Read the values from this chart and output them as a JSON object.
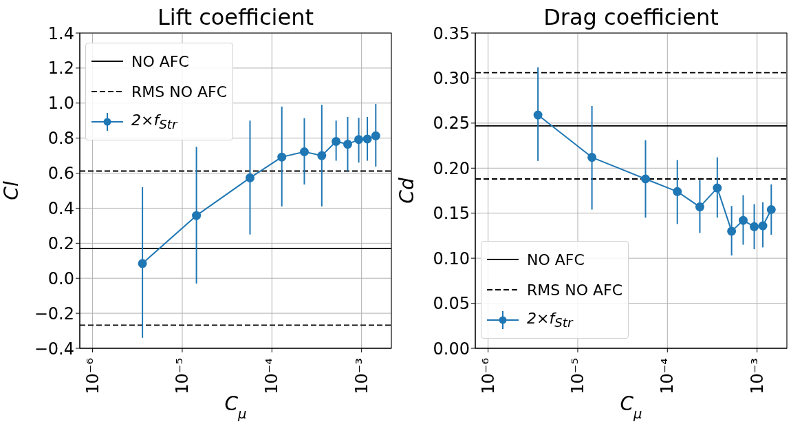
{
  "chart_data": [
    {
      "type": "line",
      "title": "Lift coefficient",
      "xlabel": "C$_{μ}$",
      "ylabel": "Cl",
      "log": "x",
      "x": [
        3.6e-06,
        1.44e-05,
        5.7e-05,
        0.000129,
        0.00023,
        0.00036,
        0.00052,
        0.0007,
        0.00093,
        0.00116,
        0.00144
      ],
      "series": [
        {
          "name": "2×f$_{Str}$",
          "color": "#1f77b4",
          "values": [
            0.084,
            0.358,
            0.573,
            0.692,
            0.722,
            0.7,
            0.781,
            0.765,
            0.792,
            0.795,
            0.813
          ],
          "errors": [
            [
              -0.34,
              0.52
            ],
            [
              -0.03,
              0.75
            ],
            [
              0.25,
              0.9
            ],
            [
              0.41,
              0.98
            ],
            [
              0.535,
              0.914
            ],
            [
              0.41,
              0.99
            ],
            [
              0.671,
              0.9
            ],
            [
              0.613,
              0.921
            ],
            [
              0.66,
              0.916
            ],
            [
              0.671,
              0.921
            ],
            [
              0.637,
              0.995
            ]
          ]
        }
      ],
      "marker": "circle",
      "ref_lines": [
        {
          "axis": "y",
          "value": 0.17,
          "label": "NO AFC",
          "color": "#000000",
          "line_style": "solid"
        },
        {
          "axis": "y",
          "value": 0.612,
          "label": "RMS NO AFC",
          "color": "#000000",
          "line_style": "dashed"
        },
        {
          "axis": "y",
          "value": -0.268,
          "color": "#000000",
          "line_style": "dashed"
        }
      ],
      "xlim": [
        7.2e-07,
        0.00215
      ],
      "xticks": [
        {
          "value": 1e-06,
          "label": "10⁻⁶"
        },
        {
          "value": 1e-05,
          "label": "10⁻⁵"
        },
        {
          "value": 0.0001,
          "label": "10⁻⁴"
        },
        {
          "value": 0.001,
          "label": "10⁻³"
        }
      ],
      "ylim": [
        -0.4,
        1.4
      ],
      "yticks": [
        {
          "value": -0.4,
          "label": "−0.4"
        },
        {
          "value": -0.2,
          "label": "−0.2"
        },
        {
          "value": 0,
          "label": "0.0"
        },
        {
          "value": 0.2,
          "label": "0.2"
        },
        {
          "value": 0.4,
          "label": "0.4"
        },
        {
          "value": 0.6,
          "label": "0.6"
        },
        {
          "value": 0.8,
          "label": "0.8"
        },
        {
          "value": 1.0,
          "label": "1.0"
        },
        {
          "value": 1.2,
          "label": "1.2"
        },
        {
          "value": 1.4,
          "label": "1.4"
        }
      ],
      "grid": true,
      "legend": "top left"
    },
    {
      "type": "line",
      "title": "Drag coefficient",
      "xlabel": "C$_{μ}$",
      "ylabel": "Cd",
      "log": "x",
      "x": [
        3.6e-06,
        1.44e-05,
        5.7e-05,
        0.000129,
        0.00023,
        0.00036,
        0.00052,
        0.0007,
        0.00093,
        0.00116,
        0.00144
      ],
      "series": [
        {
          "name": "2×f$_{Str}$",
          "color": "#1f77b4",
          "values": [
            0.259,
            0.212,
            0.188,
            0.174,
            0.157,
            0.178,
            0.13,
            0.142,
            0.135,
            0.136,
            0.154
          ],
          "errors": [
            [
              0.208,
              0.312
            ],
            [
              0.154,
              0.269
            ],
            [
              0.145,
              0.231
            ],
            [
              0.138,
              0.209
            ],
            [
              0.128,
              0.187
            ],
            [
              0.145,
              0.212
            ],
            [
              0.103,
              0.158
            ],
            [
              0.115,
              0.17
            ],
            [
              0.11,
              0.16
            ],
            [
              0.112,
              0.162
            ],
            [
              0.126,
              0.182
            ]
          ]
        }
      ],
      "marker": "circle",
      "ref_lines": [
        {
          "axis": "y",
          "value": 0.247,
          "label": "NO AFC",
          "color": "#000000",
          "line_style": "solid"
        },
        {
          "axis": "y",
          "value": 0.306,
          "label": "RMS NO AFC",
          "color": "#000000",
          "line_style": "dashed"
        },
        {
          "axis": "y",
          "value": 0.188,
          "color": "#000000",
          "line_style": "dashed"
        }
      ],
      "xlim": [
        7.2e-07,
        0.00215
      ],
      "xticks": [
        {
          "value": 1e-06,
          "label": "10⁻⁶"
        },
        {
          "value": 1e-05,
          "label": "10⁻⁵"
        },
        {
          "value": 0.0001,
          "label": "10⁻⁴"
        },
        {
          "value": 0.001,
          "label": "10⁻³"
        }
      ],
      "ylim": [
        0,
        0.35
      ],
      "yticks": [
        {
          "value": 0,
          "label": "0.00"
        },
        {
          "value": 0.05,
          "label": "0.05"
        },
        {
          "value": 0.1,
          "label": "0.10"
        },
        {
          "value": 0.15,
          "label": "0.15"
        },
        {
          "value": 0.2,
          "label": "0.20"
        },
        {
          "value": 0.25,
          "label": "0.25"
        },
        {
          "value": 0.3,
          "label": "0.30"
        },
        {
          "value": 0.35,
          "label": "0.35"
        }
      ],
      "grid": true,
      "legend": "bottom left"
    }
  ]
}
